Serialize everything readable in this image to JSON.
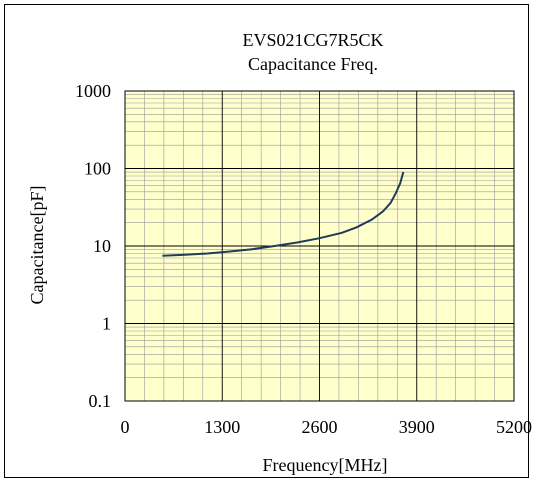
{
  "chart_data": {
    "type": "line",
    "title": "EVS021CG7R5CK",
    "subtitle": "Capacitance Freq.",
    "xlabel": "Frequency[MHz]",
    "ylabel": "Capacitance[pF]",
    "xlim": [
      0,
      5200
    ],
    "ylim": [
      0.1,
      1000
    ],
    "yscale": "log",
    "x_ticks": [
      "0",
      "1300",
      "2600",
      "3900",
      "5200"
    ],
    "y_ticks": [
      "0.1",
      "1",
      "10",
      "100",
      "1000"
    ],
    "grid": true,
    "legend": "none",
    "colors": {
      "plot_bg": "#ffffcc",
      "major_grid": "#000000",
      "minor_grid": "#9a9a9a",
      "line": "#1f3b57"
    },
    "series": [
      {
        "values": [
          [
            500,
            7.5
          ],
          [
            800,
            7.7
          ],
          [
            1100,
            8.0
          ],
          [
            1400,
            8.5
          ],
          [
            1700,
            9.1
          ],
          [
            2000,
            10.0
          ],
          [
            2300,
            11.1
          ],
          [
            2600,
            12.6
          ],
          [
            2900,
            14.8
          ],
          [
            3100,
            17.5
          ],
          [
            3300,
            22
          ],
          [
            3450,
            28
          ],
          [
            3550,
            36
          ],
          [
            3620,
            48
          ],
          [
            3680,
            65
          ],
          [
            3720,
            90
          ]
        ]
      }
    ]
  }
}
